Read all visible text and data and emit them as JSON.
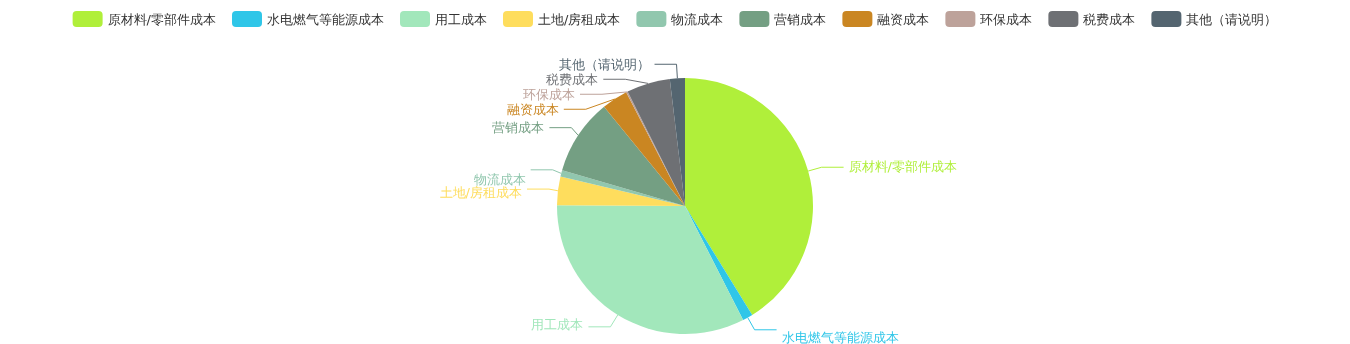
{
  "chart_data": {
    "type": "pie",
    "categories": [
      "原材料/零部件成本",
      "水电燃气等能源成本",
      "用工成本",
      "土地/房租成本",
      "物流成本",
      "营销成本",
      "融资成本",
      "环保成本",
      "税费成本",
      "其他（请说明）"
    ],
    "values": [
      41.2,
      1.3,
      32.6,
      3.6,
      0.8,
      9.6,
      3.3,
      0.2,
      5.5,
      1.9
    ],
    "colors": [
      "#b0ef3a",
      "#2fc6e8",
      "#a2e7bb",
      "#fedd5d",
      "#91c7ae",
      "#749f83",
      "#ca8622",
      "#bda29a",
      "#6e7074",
      "#546570"
    ],
    "legend": "top"
  }
}
